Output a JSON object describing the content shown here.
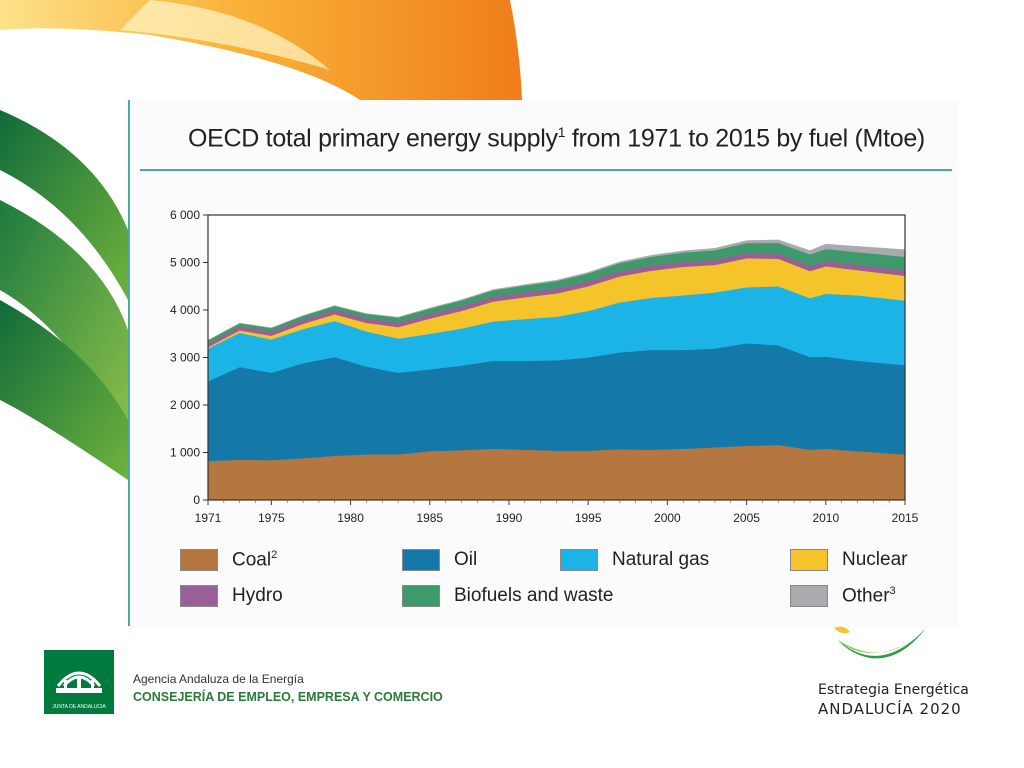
{
  "page": {
    "title_main": "OECD total primary energy supply",
    "title_sup": "1",
    "title_rest": " from 1971 to 2015 by fuel (Mtoe)"
  },
  "legend": [
    {
      "label": "Coal",
      "sup": "2",
      "color": "#b5763f"
    },
    {
      "label": "Oil",
      "sup": "",
      "color": "#1478a8"
    },
    {
      "label": "Natural gas",
      "sup": "",
      "color": "#1cb4e6"
    },
    {
      "label": "Nuclear",
      "sup": "",
      "color": "#f5c32a"
    },
    {
      "label": "Hydro",
      "sup": "",
      "color": "#9b5f97"
    },
    {
      "label": "Biofuels and waste",
      "sup": "",
      "color": "#3f9a6b"
    },
    {
      "label": "Other",
      "sup": "3",
      "color": "#a9a9ae"
    }
  ],
  "footer": {
    "agency": "Agencia Andaluza de la Energía",
    "consejeria": "CONSEJERÍA DE EMPLEO, EMPRESA Y COMERCIO",
    "junta_logo_text": "JUNTA DE ANDALUCIA",
    "strategy_line1": "Estrategia Energética",
    "strategy_line2": "ANDALUCÍA 2020"
  },
  "chart_data": {
    "type": "area",
    "stacked": true,
    "title": "OECD total primary energy supply1 from 1971 to 2015 by fuel (Mtoe)",
    "xlim": [
      1971,
      2015
    ],
    "ylim": [
      0,
      6000
    ],
    "x_ticks": [
      "1971",
      "1975",
      "1980",
      "1985",
      "1990",
      "1995",
      "2000",
      "2005",
      "2010",
      "2015"
    ],
    "y_ticks": [
      "0",
      "1 000",
      "2 000",
      "3 000",
      "4 000",
      "5 000",
      "6 000"
    ],
    "x": [
      1971,
      1973,
      1975,
      1977,
      1979,
      1981,
      1983,
      1985,
      1987,
      1989,
      1991,
      1993,
      1995,
      1997,
      1999,
      2001,
      2003,
      2005,
      2007,
      2009,
      2010,
      2012,
      2015
    ],
    "series": [
      {
        "name": "Coal",
        "color": "#b5763f",
        "values": [
          820,
          850,
          840,
          880,
          930,
          960,
          960,
          1030,
          1050,
          1080,
          1060,
          1040,
          1040,
          1070,
          1060,
          1080,
          1110,
          1140,
          1160,
          1060,
          1080,
          1030,
          960
        ]
      },
      {
        "name": "Oil",
        "color": "#1478a8",
        "values": [
          1680,
          1950,
          1840,
          2000,
          2080,
          1850,
          1720,
          1720,
          1780,
          1850,
          1870,
          1900,
          1960,
          2040,
          2100,
          2080,
          2080,
          2160,
          2100,
          1950,
          1940,
          1900,
          1880
        ]
      },
      {
        "name": "Natural gas",
        "color": "#1cb4e6",
        "values": [
          690,
          720,
          700,
          720,
          760,
          740,
          720,
          750,
          780,
          830,
          880,
          920,
          980,
          1050,
          1100,
          1150,
          1180,
          1180,
          1240,
          1240,
          1320,
          1380,
          1360
        ]
      },
      {
        "name": "Nuclear",
        "color": "#f5c32a",
        "values": [
          30,
          50,
          80,
          110,
          140,
          180,
          240,
          320,
          370,
          420,
          460,
          490,
          520,
          550,
          570,
          600,
          580,
          610,
          580,
          570,
          580,
          530,
          520
        ]
      },
      {
        "name": "Hydro",
        "color": "#9b5f97",
        "values": [
          80,
          85,
          90,
          92,
          95,
          97,
          100,
          100,
          102,
          104,
          106,
          108,
          110,
          110,
          112,
          110,
          108,
          110,
          110,
          110,
          112,
          114,
          115
        ]
      },
      {
        "name": "Biofuels and waste",
        "color": "#3f9a6b",
        "values": [
          60,
          65,
          70,
          75,
          80,
          90,
          100,
          110,
          120,
          130,
          140,
          150,
          160,
          170,
          180,
          190,
          200,
          210,
          225,
          240,
          255,
          265,
          285
        ]
      },
      {
        "name": "Other",
        "color": "#a9a9ae",
        "values": [
          5,
          5,
          5,
          6,
          7,
          8,
          10,
          12,
          14,
          16,
          18,
          20,
          22,
          25,
          30,
          35,
          40,
          50,
          60,
          80,
          100,
          120,
          150
        ]
      }
    ]
  }
}
